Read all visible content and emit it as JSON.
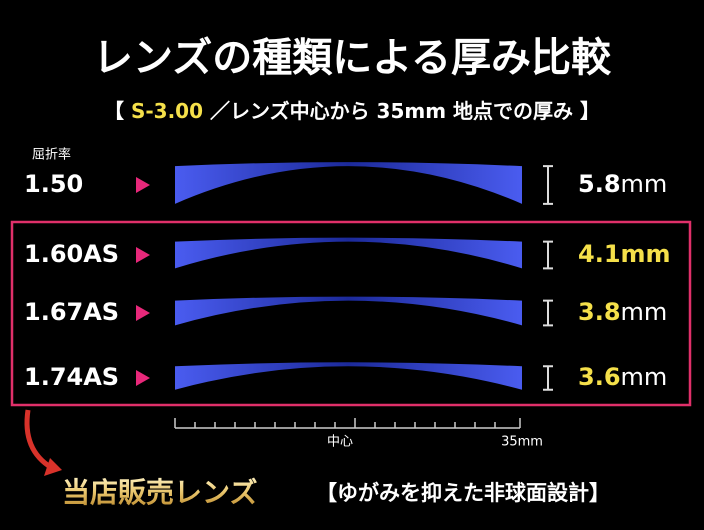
{
  "header": {
    "title": "レンズの種類による厚み比較",
    "subtitle": {
      "open": "【",
      "power": "S-3.00",
      "text": "／レンズ中心から 35mm 地点での厚み",
      "close": "】"
    }
  },
  "index_label": "屈折率",
  "rows": [
    {
      "index": "1.50",
      "thickness": "5.8",
      "unit": "mm"
    },
    {
      "index": "1.60AS",
      "thickness": "4.1",
      "unit": "mm"
    },
    {
      "index": "1.67AS",
      "thickness": "3.8",
      "unit": "mm"
    },
    {
      "index": "1.74AS",
      "thickness": "3.6",
      "unit": "mm"
    }
  ],
  "scale": {
    "center": "中心",
    "edge": "35mm"
  },
  "footer": {
    "label": "当店販売レンズ",
    "note": "【ゆがみを抑えた非球面設計】"
  }
}
